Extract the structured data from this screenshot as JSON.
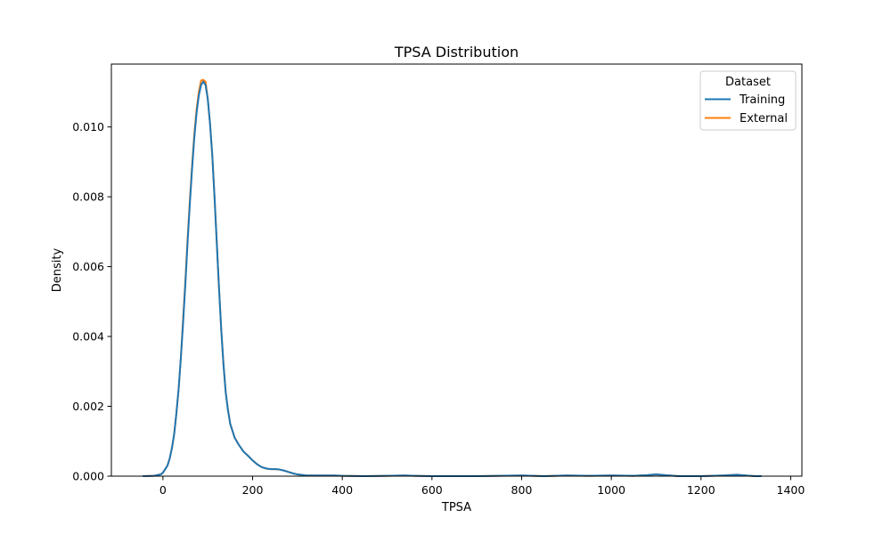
{
  "chart_data": {
    "type": "line",
    "title": "TPSA Distribution",
    "xlabel": "TPSA",
    "ylabel": "Density",
    "xlim": [
      -115,
      1425
    ],
    "ylim": [
      0,
      0.0118
    ],
    "xticks": [
      0,
      200,
      400,
      600,
      800,
      1000,
      1200,
      1400
    ],
    "xtick_labels": [
      "0",
      "200",
      "400",
      "600",
      "800",
      "1000",
      "1200",
      "1400"
    ],
    "yticks": [
      0,
      0.002,
      0.004,
      0.006,
      0.008,
      0.01
    ],
    "ytick_labels": [
      "0.000",
      "0.002",
      "0.004",
      "0.006",
      "0.008",
      "0.010"
    ],
    "grid": false,
    "legend": {
      "title": "Dataset",
      "placement": "top-right"
    },
    "series": [
      {
        "name": "Training",
        "color": "#1f77b4",
        "points": [
          [
            -45,
            0
          ],
          [
            -20,
            1e-05
          ],
          [
            -5,
            5e-05
          ],
          [
            0,
            0.0001
          ],
          [
            5,
            0.0002
          ],
          [
            10,
            0.0003
          ],
          [
            15,
            0.0005
          ],
          [
            20,
            0.0008
          ],
          [
            25,
            0.0012
          ],
          [
            30,
            0.0018
          ],
          [
            35,
            0.0025
          ],
          [
            40,
            0.0034
          ],
          [
            45,
            0.0044
          ],
          [
            50,
            0.0055
          ],
          [
            55,
            0.0067
          ],
          [
            60,
            0.0078
          ],
          [
            65,
            0.0088
          ],
          [
            70,
            0.0097
          ],
          [
            75,
            0.0104
          ],
          [
            80,
            0.0109
          ],
          [
            85,
            0.0112
          ],
          [
            90,
            0.0113
          ],
          [
            95,
            0.0112
          ],
          [
            100,
            0.0108
          ],
          [
            105,
            0.0101
          ],
          [
            110,
            0.0092
          ],
          [
            115,
            0.008
          ],
          [
            120,
            0.0067
          ],
          [
            125,
            0.0054
          ],
          [
            130,
            0.0042
          ],
          [
            135,
            0.0032
          ],
          [
            140,
            0.0024
          ],
          [
            145,
            0.0019
          ],
          [
            150,
            0.0015
          ],
          [
            160,
            0.0011
          ],
          [
            170,
            0.00088
          ],
          [
            180,
            0.0007
          ],
          [
            190,
            0.00058
          ],
          [
            200,
            0.00045
          ],
          [
            210,
            0.00034
          ],
          [
            220,
            0.00026
          ],
          [
            230,
            0.00022
          ],
          [
            240,
            0.0002
          ],
          [
            250,
            0.0002
          ],
          [
            260,
            0.00019
          ],
          [
            270,
            0.00016
          ],
          [
            280,
            0.00012
          ],
          [
            290,
            8e-05
          ],
          [
            300,
            5e-05
          ],
          [
            320,
            2e-05
          ],
          [
            350,
            2e-05
          ],
          [
            380,
            2e-05
          ],
          [
            400,
            1e-05
          ],
          [
            450,
            0
          ],
          [
            500,
            1e-05
          ],
          [
            540,
            2e-05
          ],
          [
            560,
            1e-05
          ],
          [
            600,
            0
          ],
          [
            700,
            0
          ],
          [
            750,
            1e-05
          ],
          [
            800,
            2e-05
          ],
          [
            850,
            0
          ],
          [
            900,
            2e-05
          ],
          [
            950,
            1e-05
          ],
          [
            1000,
            2e-05
          ],
          [
            1050,
            1e-05
          ],
          [
            1080,
            3e-05
          ],
          [
            1100,
            5e-05
          ],
          [
            1120,
            3e-05
          ],
          [
            1150,
            0
          ],
          [
            1200,
            0
          ],
          [
            1250,
            2e-05
          ],
          [
            1280,
            4e-05
          ],
          [
            1300,
            2e-05
          ],
          [
            1320,
            0
          ],
          [
            1335,
            0
          ]
        ]
      },
      {
        "name": "External",
        "color": "#ff7f0e",
        "points": [
          [
            -45,
            0
          ],
          [
            -20,
            1e-05
          ],
          [
            -5,
            5e-05
          ],
          [
            0,
            0.0001
          ],
          [
            5,
            0.0002
          ],
          [
            10,
            0.0003
          ],
          [
            15,
            0.0005
          ],
          [
            20,
            0.0008
          ],
          [
            25,
            0.0012
          ],
          [
            30,
            0.0018
          ],
          [
            35,
            0.0025
          ],
          [
            40,
            0.0034
          ],
          [
            45,
            0.0045
          ],
          [
            50,
            0.0056
          ],
          [
            55,
            0.0068
          ],
          [
            60,
            0.0079
          ],
          [
            65,
            0.0089
          ],
          [
            70,
            0.0098
          ],
          [
            75,
            0.0105
          ],
          [
            80,
            0.011
          ],
          [
            85,
            0.01133
          ],
          [
            90,
            0.01135
          ],
          [
            95,
            0.0113
          ],
          [
            100,
            0.0108
          ],
          [
            105,
            0.0101
          ],
          [
            110,
            0.0092
          ],
          [
            115,
            0.008
          ],
          [
            120,
            0.0067
          ],
          [
            125,
            0.0054
          ],
          [
            130,
            0.0042
          ],
          [
            135,
            0.0032
          ],
          [
            140,
            0.0024
          ],
          [
            145,
            0.0019
          ],
          [
            150,
            0.0015
          ],
          [
            160,
            0.0011
          ],
          [
            170,
            0.00088
          ],
          [
            180,
            0.0007
          ],
          [
            190,
            0.00058
          ],
          [
            200,
            0.00045
          ],
          [
            210,
            0.00034
          ],
          [
            220,
            0.00026
          ],
          [
            230,
            0.00022
          ],
          [
            240,
            0.0002
          ],
          [
            250,
            0.0002
          ],
          [
            260,
            0.00019
          ],
          [
            270,
            0.00016
          ],
          [
            280,
            0.00012
          ],
          [
            290,
            8e-05
          ],
          [
            300,
            5e-05
          ],
          [
            320,
            2e-05
          ],
          [
            350,
            2e-05
          ],
          [
            380,
            2e-05
          ],
          [
            400,
            1e-05
          ],
          [
            450,
            0
          ],
          [
            500,
            1e-05
          ],
          [
            540,
            2e-05
          ],
          [
            560,
            1e-05
          ],
          [
            600,
            0
          ],
          [
            700,
            0
          ],
          [
            750,
            1e-05
          ],
          [
            800,
            2e-05
          ],
          [
            850,
            0
          ],
          [
            900,
            2e-05
          ],
          [
            950,
            1e-05
          ],
          [
            1000,
            2e-05
          ],
          [
            1050,
            1e-05
          ],
          [
            1080,
            3e-05
          ],
          [
            1100,
            5e-05
          ],
          [
            1120,
            3e-05
          ],
          [
            1150,
            0
          ],
          [
            1200,
            0
          ],
          [
            1250,
            2e-05
          ],
          [
            1280,
            4e-05
          ],
          [
            1300,
            2e-05
          ],
          [
            1320,
            0
          ],
          [
            1335,
            0
          ]
        ]
      }
    ]
  }
}
